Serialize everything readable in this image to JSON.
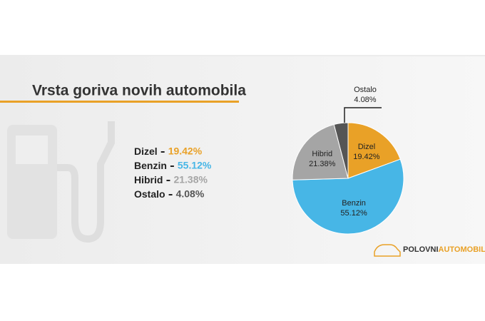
{
  "chart_data": {
    "type": "pie",
    "title": "Vrsta goriva novih automobila",
    "categories": [
      "Dizel",
      "Benzin",
      "Hibrid",
      "Ostalo"
    ],
    "values": [
      19.42,
      55.12,
      21.38,
      4.08
    ],
    "value_labels": [
      "19.42%",
      "55.12%",
      "21.38%",
      "4.08%"
    ],
    "colors": [
      "#e9a127",
      "#47b6e6",
      "#a5a5a5",
      "#555555"
    ]
  },
  "logo": {
    "dark": "POLOVNI",
    "accent": "AUTOMOBILI"
  }
}
